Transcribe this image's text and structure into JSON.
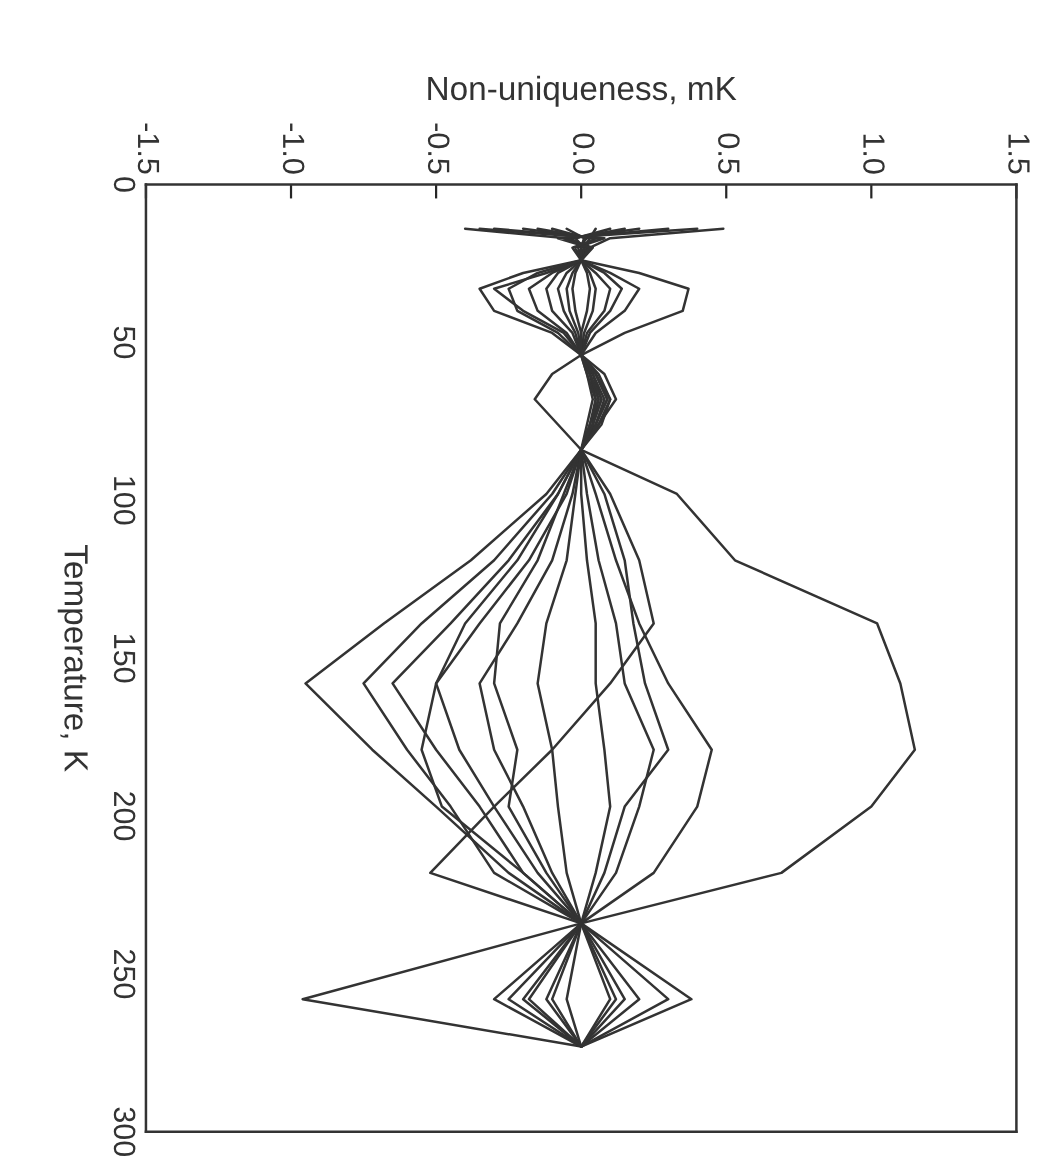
{
  "chart_data": {
    "type": "line",
    "xlabel": "Non-uniqueness, mK",
    "ylabel": "Temperature, K",
    "xlim": [
      -1.5,
      1.5
    ],
    "xticks": [
      -1.5,
      {
        "value": -1,
        "label": "-1.0"
      },
      -0.5,
      {
        "value": 0,
        "label": "0.0"
      },
      0.5,
      {
        "value": 1,
        "label": "1.0"
      },
      1.5
    ],
    "ylim": [
      300,
      0
    ],
    "yticks": [
      0,
      50,
      100,
      150,
      200,
      250,
      300
    ],
    "grid": false,
    "legend": false,
    "marker": "none",
    "line_style": "solid",
    "series": [
      {
        "color": "#333333",
        "x": [
          0.05,
          0.03,
          0.01,
          0,
          0.2,
          0.37,
          0.35,
          0.15,
          0,
          0.03,
          0.05,
          0.04,
          0,
          0.33,
          0.53,
          1.02,
          1.1,
          1.15,
          1.0,
          0.69,
          0,
          0.2,
          0
        ],
        "values": [
          14,
          17,
          20,
          24,
          28,
          33,
          40,
          47,
          54,
          60,
          68,
          76,
          84,
          98,
          119,
          139,
          158,
          179,
          197,
          218,
          234,
          258,
          273
        ]
      },
      {
        "color": "#333333",
        "x": [
          -0.4,
          -0.05,
          0.02,
          0,
          -0.2,
          -0.35,
          -0.3,
          -0.1,
          0,
          -0.1,
          -0.16,
          -0.08,
          0,
          -0.12,
          -0.38,
          -0.68,
          -0.95,
          -0.72,
          -0.5,
          -0.25,
          0,
          -0.96,
          0
        ],
        "values": [
          14,
          17,
          20,
          24,
          28,
          33,
          40,
          47,
          54,
          60,
          68,
          76,
          84,
          98,
          119,
          139,
          158,
          179,
          197,
          218,
          234,
          258,
          273
        ]
      },
      {
        "color": "#333333",
        "x": [
          0.49,
          0.1,
          0.03,
          0,
          0.1,
          0.2,
          0.15,
          0.05,
          0,
          0.08,
          0.12,
          0.06,
          0,
          0.1,
          0.2,
          0.25,
          0.1,
          -0.1,
          -0.3,
          -0.52,
          0,
          0.38,
          0
        ],
        "values": [
          14,
          17,
          20,
          24,
          28,
          33,
          40,
          47,
          54,
          60,
          68,
          76,
          84,
          98,
          119,
          139,
          158,
          179,
          197,
          218,
          234,
          258,
          273
        ]
      },
      {
        "color": "#333333",
        "x": [
          -0.3,
          0.08,
          -0.02,
          0,
          -0.15,
          -0.25,
          -0.22,
          -0.08,
          0,
          0.05,
          0.09,
          0.05,
          0,
          -0.1,
          -0.3,
          -0.55,
          -0.75,
          -0.6,
          -0.45,
          -0.3,
          0,
          -0.3,
          0
        ],
        "values": [
          14,
          17,
          20,
          24,
          28,
          33,
          40,
          47,
          54,
          60,
          68,
          76,
          84,
          98,
          119,
          139,
          158,
          179,
          197,
          218,
          234,
          258,
          273
        ]
      },
      {
        "color": "#333333",
        "x": [
          0.3,
          -0.06,
          0.04,
          0,
          -0.1,
          -0.18,
          -0.15,
          -0.05,
          0,
          0.06,
          0.1,
          0.07,
          0,
          -0.08,
          -0.25,
          -0.45,
          -0.65,
          -0.5,
          -0.35,
          -0.2,
          0,
          -0.25,
          0
        ],
        "values": [
          14,
          17,
          20,
          24,
          28,
          33,
          40,
          47,
          54,
          60,
          68,
          76,
          84,
          98,
          119,
          139,
          158,
          179,
          197,
          218,
          234,
          258,
          273
        ]
      },
      {
        "color": "#333333",
        "x": [
          -0.2,
          0.05,
          0.0,
          0,
          -0.08,
          -0.12,
          -0.1,
          -0.03,
          0,
          0.04,
          0.08,
          0.05,
          0,
          -0.05,
          -0.18,
          -0.35,
          -0.5,
          -0.42,
          -0.3,
          -0.15,
          0,
          -0.18,
          0
        ],
        "values": [
          14,
          17,
          20,
          24,
          28,
          33,
          40,
          47,
          54,
          60,
          68,
          76,
          84,
          98,
          119,
          139,
          158,
          179,
          197,
          218,
          234,
          258,
          273
        ]
      },
      {
        "color": "#333333",
        "x": [
          0.2,
          -0.04,
          0.02,
          0,
          0.05,
          0.1,
          0.08,
          0.02,
          0,
          0.05,
          0.09,
          0.05,
          0,
          0.05,
          0.12,
          0.2,
          0.3,
          0.45,
          0.4,
          0.25,
          0,
          0.3,
          0
        ],
        "values": [
          14,
          17,
          20,
          24,
          28,
          33,
          40,
          47,
          54,
          60,
          68,
          76,
          84,
          98,
          119,
          139,
          158,
          179,
          197,
          218,
          234,
          258,
          273
        ]
      },
      {
        "color": "#333333",
        "x": [
          -0.1,
          0.02,
          -0.01,
          0,
          -0.05,
          -0.08,
          -0.06,
          -0.02,
          0,
          0.03,
          0.06,
          0.04,
          0,
          -0.03,
          -0.1,
          -0.22,
          -0.35,
          -0.3,
          -0.2,
          -0.1,
          0,
          -0.12,
          0
        ],
        "values": [
          14,
          17,
          20,
          24,
          28,
          33,
          40,
          47,
          54,
          60,
          68,
          76,
          84,
          98,
          119,
          139,
          158,
          179,
          197,
          218,
          234,
          258,
          273
        ]
      },
      {
        "color": "#333333",
        "x": [
          0.1,
          -0.02,
          0.01,
          0,
          0.03,
          0.05,
          0.04,
          0.01,
          0,
          0.04,
          0.07,
          0.04,
          0,
          0.02,
          0.06,
          0.12,
          0.15,
          0.25,
          0.2,
          0.12,
          0,
          0.15,
          0
        ],
        "values": [
          14,
          17,
          20,
          24,
          28,
          33,
          40,
          47,
          54,
          60,
          68,
          76,
          84,
          98,
          119,
          139,
          158,
          179,
          197,
          218,
          234,
          258,
          273
        ]
      },
      {
        "color": "#333333",
        "x": [
          -0.15,
          0.04,
          0.01,
          0,
          -0.03,
          -0.05,
          -0.04,
          -0.01,
          0,
          0.02,
          0.05,
          0.03,
          0,
          -0.06,
          -0.15,
          -0.28,
          -0.3,
          -0.22,
          -0.25,
          -0.12,
          0,
          -0.1,
          0
        ],
        "values": [
          14,
          17,
          20,
          24,
          28,
          33,
          40,
          47,
          54,
          60,
          68,
          76,
          84,
          98,
          119,
          139,
          158,
          179,
          197,
          218,
          234,
          258,
          273
        ]
      },
      {
        "color": "#333333",
        "x": [
          0.15,
          -0.03,
          0.0,
          0,
          0.02,
          0.03,
          0.02,
          0.0,
          0,
          0.03,
          0.06,
          0.03,
          0,
          0.0,
          0.02,
          0.05,
          0.05,
          0.08,
          0.1,
          0.05,
          0,
          0.1,
          0
        ],
        "values": [
          14,
          17,
          20,
          24,
          28,
          33,
          40,
          47,
          54,
          60,
          68,
          76,
          84,
          98,
          119,
          139,
          158,
          179,
          197,
          218,
          234,
          258,
          273
        ]
      },
      {
        "color": "#333333",
        "x": [
          -0.05,
          0.01,
          0.0,
          0,
          -0.02,
          -0.03,
          -0.02,
          0.0,
          0,
          0.02,
          0.04,
          0.02,
          0,
          -0.02,
          -0.05,
          -0.12,
          -0.15,
          -0.1,
          -0.08,
          -0.05,
          0,
          -0.05,
          0
        ],
        "values": [
          14,
          17,
          20,
          24,
          28,
          33,
          40,
          47,
          54,
          60,
          68,
          76,
          84,
          98,
          119,
          139,
          158,
          179,
          197,
          218,
          234,
          258,
          273
        ]
      },
      {
        "color": "#333333",
        "x": [
          0.4,
          -0.08,
          0.03,
          0,
          0.08,
          0.14,
          0.1,
          0.03,
          0,
          0.05,
          0.1,
          0.06,
          0,
          0.08,
          0.15,
          0.18,
          0.22,
          0.3,
          0.15,
          0.08,
          0,
          0.12,
          0
        ],
        "values": [
          14,
          17,
          20,
          24,
          28,
          33,
          40,
          47,
          54,
          60,
          68,
          76,
          84,
          98,
          119,
          139,
          158,
          179,
          197,
          218,
          234,
          258,
          273
        ]
      },
      {
        "color": "#333333",
        "x": [
          -0.35,
          0.06,
          -0.03,
          0,
          -0.12,
          -0.3,
          -0.2,
          -0.06,
          0,
          0.03,
          0.07,
          0.04,
          0,
          -0.08,
          -0.22,
          -0.4,
          -0.5,
          -0.55,
          -0.48,
          -0.2,
          0,
          -0.2,
          0
        ],
        "values": [
          14,
          17,
          20,
          24,
          28,
          33,
          40,
          47,
          54,
          60,
          68,
          76,
          84,
          98,
          119,
          139,
          158,
          179,
          197,
          218,
          234,
          258,
          273
        ]
      }
    ]
  }
}
